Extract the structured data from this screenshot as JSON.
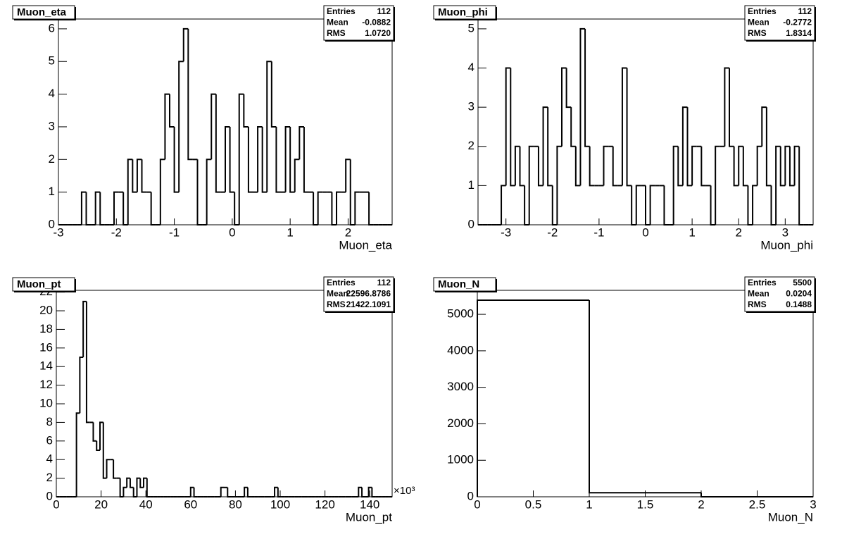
{
  "chart_data": [
    {
      "type": "histogram",
      "title": "Muon_eta",
      "xlabel": "Muon_eta",
      "stats_labels": [
        "Entries",
        "Mean",
        "RMS"
      ],
      "stats_values": [
        "112",
        "-0.0882",
        "1.0720"
      ],
      "bins": [
        -3,
        -2.92,
        -2.84,
        -2.76,
        -2.68,
        -2.6,
        -2.52,
        -2.44,
        -2.36,
        -2.28,
        -2.2,
        -2.12,
        -2.04,
        -1.96,
        -1.88,
        -1.8,
        -1.72,
        -1.64,
        -1.56,
        -1.48,
        -1.4,
        -1.32,
        -1.24,
        -1.16,
        -1.08,
        -1,
        -0.92,
        -0.84,
        -0.76,
        -0.68,
        -0.6,
        -0.52,
        -0.44,
        -0.36,
        -0.28,
        -0.2,
        -0.12,
        -0.04,
        0.04,
        0.12,
        0.2,
        0.28,
        0.36,
        0.44,
        0.52,
        0.6,
        0.68,
        0.76,
        0.84,
        0.92,
        1,
        1.08,
        1.16,
        1.24,
        1.32,
        1.4,
        1.48,
        1.56,
        1.64,
        1.72,
        1.8,
        1.88,
        1.96,
        2.04,
        2.12,
        2.2,
        2.28,
        2.36,
        2.44,
        2.52,
        2.6,
        2.68,
        2.76
      ],
      "values": [
        0,
        0,
        0,
        0,
        0,
        1,
        0,
        0,
        1,
        0,
        0,
        0,
        1,
        1,
        0,
        2,
        1,
        2,
        1,
        1,
        0,
        0,
        2,
        4,
        3,
        1,
        5,
        6,
        2,
        2,
        0,
        0,
        2,
        4,
        1,
        1,
        3,
        1,
        0,
        4,
        3,
        1,
        1,
        3,
        1,
        5,
        3,
        1,
        1,
        3,
        1,
        2,
        3,
        1,
        1,
        0,
        1,
        1,
        1,
        0,
        1,
        1,
        2,
        0,
        1,
        1,
        1,
        0,
        0,
        0,
        0,
        0
      ],
      "xlim": [
        -3,
        2.76
      ],
      "xticks": [
        -3,
        -2,
        -1,
        0,
        1,
        2
      ],
      "ylim": [
        0,
        6.3
      ],
      "yticks": [
        0,
        1,
        2,
        3,
        4,
        5,
        6
      ],
      "color": "#000000"
    },
    {
      "type": "histogram",
      "title": "Muon_phi",
      "xlabel": "Muon_phi",
      "stats_labels": [
        "Entries",
        "Mean",
        "RMS"
      ],
      "stats_values": [
        "112",
        "-0.2772",
        "1.8314"
      ],
      "bins": [
        -3.6,
        -3.5,
        -3.4,
        -3.3,
        -3.2,
        -3.1,
        -3,
        -2.9,
        -2.8,
        -2.7,
        -2.6,
        -2.5,
        -2.4,
        -2.3,
        -2.2,
        -2.1,
        -2,
        -1.9,
        -1.8,
        -1.7,
        -1.6,
        -1.5,
        -1.4,
        -1.3,
        -1.2,
        -1.1,
        -1,
        -0.9,
        -0.8,
        -0.7,
        -0.6,
        -0.5,
        -0.4,
        -0.3,
        -0.2,
        -0.1,
        0,
        0.1,
        0.2,
        0.3,
        0.4,
        0.5,
        0.6,
        0.7,
        0.8,
        0.9,
        1,
        1.1,
        1.2,
        1.3,
        1.4,
        1.5,
        1.6,
        1.7,
        1.8,
        1.9,
        2,
        2.1,
        2.2,
        2.3,
        2.4,
        2.5,
        2.6,
        2.7,
        2.8,
        2.9,
        3,
        3.1,
        3.2,
        3.3,
        3.4,
        3.5,
        3.6
      ],
      "values": [
        0,
        0,
        0,
        0,
        0,
        1,
        4,
        1,
        2,
        1,
        0,
        2,
        2,
        1,
        3,
        1,
        0,
        2,
        4,
        3,
        2,
        1,
        5,
        2,
        1,
        1,
        1,
        2,
        2,
        1,
        1,
        4,
        1,
        0,
        1,
        1,
        0,
        1,
        1,
        1,
        0,
        0,
        2,
        1,
        3,
        1,
        2,
        2,
        1,
        1,
        0,
        2,
        2,
        4,
        2,
        1,
        2,
        1,
        0,
        1,
        2,
        3,
        1,
        0,
        2,
        1,
        2,
        1,
        2,
        0,
        0,
        0
      ],
      "xlim": [
        -3.6,
        3.6
      ],
      "xticks": [
        -3,
        -2,
        -1,
        0,
        1,
        2,
        3
      ],
      "ylim": [
        0,
        5.25
      ],
      "yticks": [
        0,
        1,
        2,
        3,
        4,
        5
      ],
      "color": "#000000"
    },
    {
      "type": "histogram",
      "title": "Muon_pt",
      "xlabel": "Muon_pt",
      "x_exponent": "×10³",
      "stats_labels": [
        "Entries",
        "Mean",
        "RMS"
      ],
      "stats_values": [
        "112",
        "22596.8786",
        "21422.1091"
      ],
      "bins": [
        0,
        1500,
        3000,
        4500,
        6000,
        7500,
        9000,
        10500,
        12000,
        13500,
        15000,
        16500,
        18000,
        19500,
        21000,
        22500,
        24000,
        25500,
        27000,
        28500,
        30000,
        31500,
        33000,
        34500,
        36000,
        37500,
        39000,
        40500,
        42000,
        43500,
        45000,
        46500,
        48000,
        49500,
        51000,
        52500,
        54000,
        55500,
        57000,
        58500,
        60000,
        61500,
        63000,
        64500,
        66000,
        67500,
        69000,
        70500,
        72000,
        73500,
        75000,
        76500,
        78000,
        79500,
        81000,
        82500,
        84000,
        85500,
        87000,
        88500,
        90000,
        91500,
        93000,
        94500,
        96000,
        97500,
        99000,
        100500,
        102000,
        103500,
        105000,
        106500,
        108000,
        109500,
        111000,
        112500,
        114000,
        115500,
        117000,
        118500,
        120000,
        121500,
        123000,
        124500,
        126000,
        127500,
        129000,
        130500,
        132000,
        133500,
        135000,
        136500,
        138000,
        139500,
        141000,
        142500,
        144000,
        145500,
        147000,
        148500,
        150000
      ],
      "values": [
        0,
        0,
        0,
        0,
        0,
        0,
        9,
        15,
        21,
        8,
        8,
        6,
        5,
        8,
        2,
        4,
        4,
        2,
        2,
        0,
        1,
        2,
        1,
        0,
        2,
        1,
        2,
        0,
        0,
        0,
        0,
        0,
        0,
        0,
        0,
        0,
        0,
        0,
        0,
        0,
        1,
        0,
        0,
        0,
        0,
        0,
        0,
        0,
        0,
        1,
        1,
        0,
        0,
        0,
        0,
        0,
        1,
        0,
        0,
        0,
        0,
        0,
        0,
        0,
        0,
        1,
        0,
        0,
        0,
        0,
        0,
        0,
        0,
        0,
        0,
        0,
        0,
        0,
        0,
        0,
        0,
        0,
        0,
        0,
        0,
        0,
        0,
        0,
        0,
        0,
        1,
        0,
        0,
        1,
        0,
        0,
        0,
        0,
        0,
        0
      ],
      "xlim": [
        0,
        150000
      ],
      "xticks": [
        {
          "value": 0,
          "label": "0"
        },
        {
          "value": 20000,
          "label": "20"
        },
        {
          "value": 40000,
          "label": "40"
        },
        {
          "value": 60000,
          "label": "60"
        },
        {
          "value": 80000,
          "label": "80"
        },
        {
          "value": 100000,
          "label": "100"
        },
        {
          "value": 120000,
          "label": "120"
        },
        {
          "value": 140000,
          "label": "140"
        }
      ],
      "ylim": [
        0,
        22.2
      ],
      "yticks": [
        0,
        2,
        4,
        6,
        8,
        10,
        12,
        14,
        16,
        18,
        20,
        22
      ],
      "color": "#000000"
    },
    {
      "type": "histogram",
      "title": "Muon_N",
      "xlabel": "Muon_N",
      "stats_labels": [
        "Entries",
        "Mean",
        "RMS"
      ],
      "stats_values": [
        "5500",
        "0.0204",
        "0.1488"
      ],
      "bins": [
        0,
        1,
        2,
        3
      ],
      "values": [
        5388,
        112,
        0
      ],
      "xlim": [
        0,
        3
      ],
      "xticks": [
        0,
        0.5,
        1,
        1.5,
        2,
        2.5,
        3
      ],
      "ylim": [
        0,
        5658
      ],
      "yticks": [
        0,
        1000,
        2000,
        3000,
        4000,
        5000
      ],
      "color": "#000000"
    }
  ]
}
